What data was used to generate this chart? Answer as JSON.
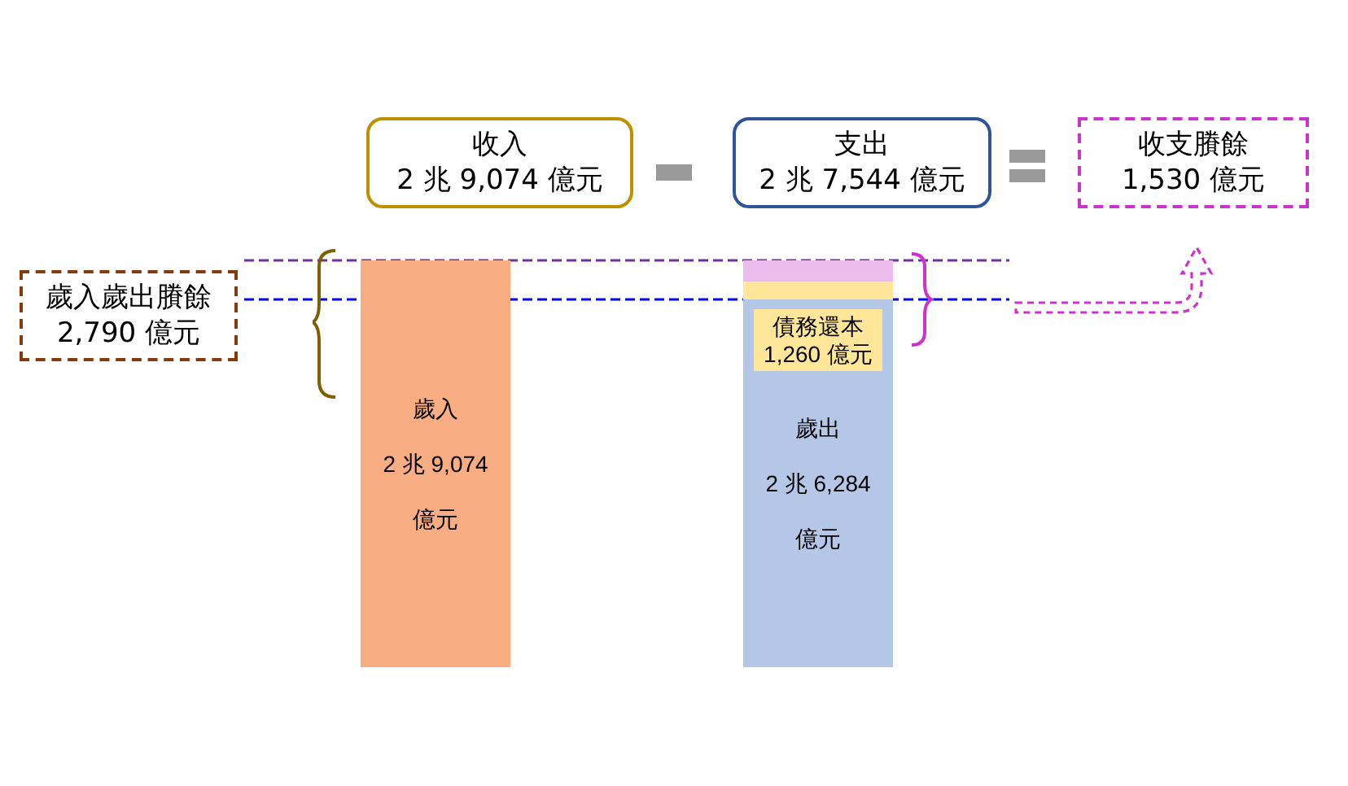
{
  "chart_data": {
    "type": "bar",
    "stacked": true,
    "tick_labels": false,
    "categories": [
      null,
      null
    ],
    "series": [
      {
        "colors": [
          "#f8ad82",
          "#b4c7e7"
        ],
        "values": [
          29074,
          26284
        ],
        "value_labels": [
          "歲入\n\n2 兆 9,074\n\n億元",
          "歲出\n\n2 兆 6,284\n\n億元"
        ]
      },
      {
        "color": "#ffe699",
        "values": [
          null,
          1260
        ],
        "value_labels": [
          null,
          "債務還本\n1,260 億元"
        ]
      },
      {
        "color": "#ecbdec",
        "values": [
          null,
          1530
        ]
      }
    ],
    "ref_lines": [
      {
        "axis": "y",
        "value": 29074,
        "color": "#7030a0",
        "line_style": "dashed"
      },
      {
        "axis": "y",
        "value": 26284,
        "color": "#0000ff",
        "line_style": "dashed"
      }
    ],
    "annotations": [
      "收入\n2 兆 9,074 億元",
      "支出\n2 兆 7,544 億元",
      "收支賸餘\n1,530 億元",
      "歲入歲出賸餘\n2,790 億元"
    ]
  }
}
